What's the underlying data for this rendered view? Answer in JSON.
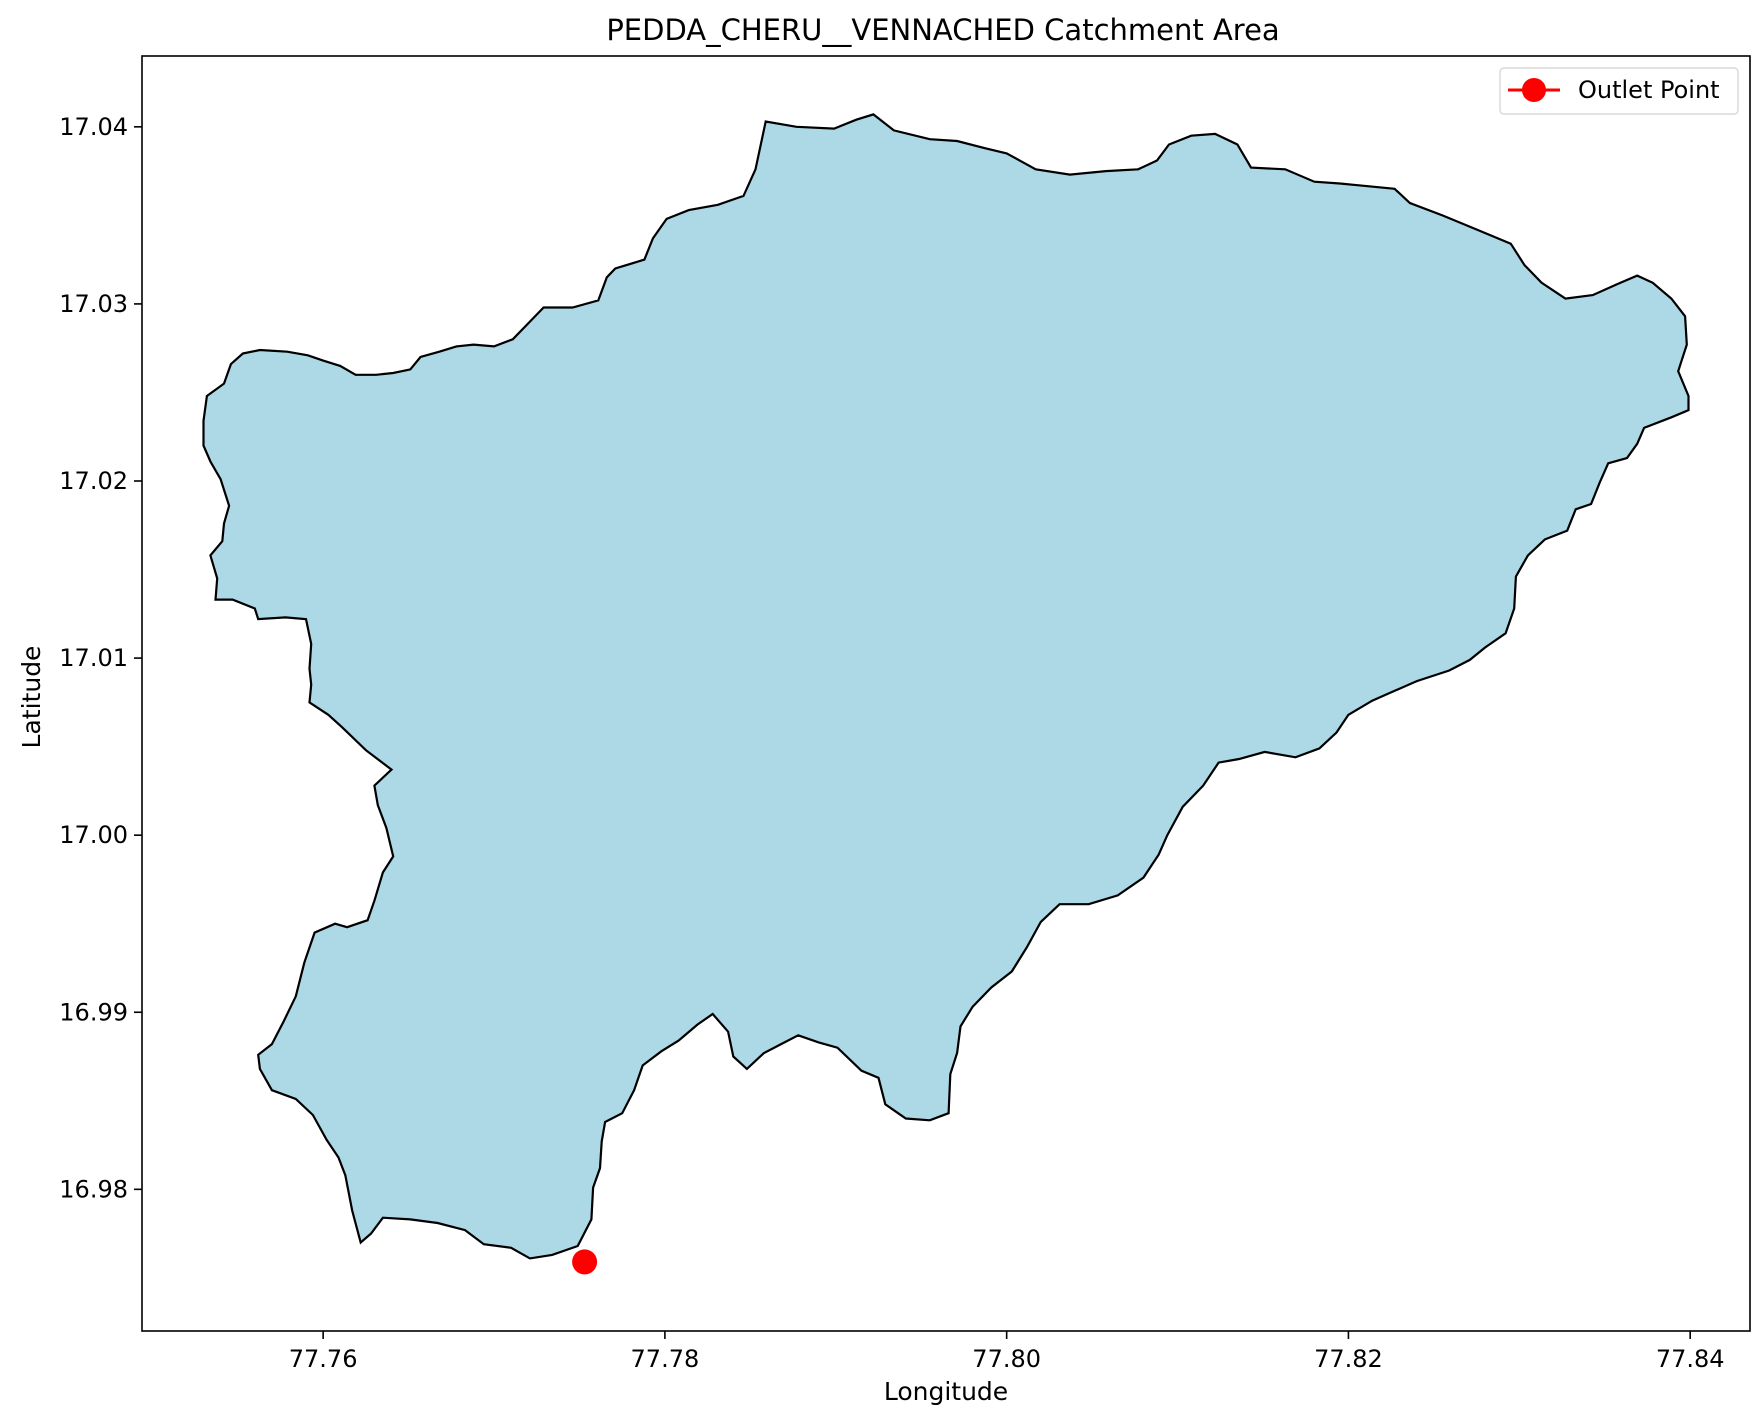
{
  "map": {
    "title": "PEDDA_CHERU__VENNACHED Catchment Area",
    "xlabel": "Longitude",
    "ylabel": "Latitude",
    "xlim": [
      77.7494,
      77.8435
    ],
    "ylim": [
      16.972,
      17.044
    ],
    "xticks": [
      77.76,
      77.78,
      77.8,
      77.82,
      77.84
    ],
    "xtick_labels": [
      "77.76",
      "77.78",
      "77.80",
      "77.82",
      "77.84"
    ],
    "yticks": [
      16.98,
      16.99,
      17.0,
      17.01,
      17.02,
      17.03,
      17.04
    ],
    "ytick_labels": [
      "16.98",
      "16.99",
      "17.00",
      "17.01",
      "17.02",
      "17.03",
      "17.04"
    ],
    "catchment": {
      "fill": "#add8e6",
      "stroke": "#000000",
      "boundary": [
        [
          77.7553,
          17.0272
        ],
        [
          77.7563,
          17.0274
        ],
        [
          77.7579,
          17.0273
        ],
        [
          77.7591,
          17.0271
        ],
        [
          77.76,
          17.0268
        ],
        [
          77.761,
          17.0265
        ],
        [
          77.7619,
          17.026
        ],
        [
          77.7631,
          17.026
        ],
        [
          77.7641,
          17.0261
        ],
        [
          77.7651,
          17.0263
        ],
        [
          77.7657,
          17.027
        ],
        [
          77.7668,
          17.0273
        ],
        [
          77.7678,
          17.0276
        ],
        [
          77.7688,
          17.0277
        ],
        [
          77.77,
          17.0276
        ],
        [
          77.7711,
          17.028
        ],
        [
          77.7722,
          17.0291
        ],
        [
          77.7729,
          17.0298
        ],
        [
          77.7746,
          17.0298
        ],
        [
          77.7761,
          17.0302
        ],
        [
          77.7766,
          17.0315
        ],
        [
          77.7771,
          17.032
        ],
        [
          77.7788,
          17.0325
        ],
        [
          77.7793,
          17.0337
        ],
        [
          77.7801,
          17.0348
        ],
        [
          77.7814,
          17.0353
        ],
        [
          77.7831,
          17.0356
        ],
        [
          77.7846,
          17.0361
        ],
        [
          77.7853,
          17.0376
        ],
        [
          77.7859,
          17.0403
        ],
        [
          77.7877,
          17.04
        ],
        [
          77.7899,
          17.0399
        ],
        [
          77.7912,
          17.0404
        ],
        [
          77.7922,
          17.0407
        ],
        [
          77.7934,
          17.0398
        ],
        [
          77.7955,
          17.0393
        ],
        [
          77.7971,
          17.0392
        ],
        [
          77.7987,
          17.0388
        ],
        [
          77.8,
          17.0385
        ],
        [
          77.8017,
          17.0376
        ],
        [
          77.8037,
          17.0373
        ],
        [
          77.8058,
          17.0375
        ],
        [
          77.8077,
          17.0376
        ],
        [
          77.8088,
          17.0381
        ],
        [
          77.8095,
          17.039
        ],
        [
          77.8108,
          17.0395
        ],
        [
          77.8122,
          17.0396
        ],
        [
          77.8135,
          17.039
        ],
        [
          77.8143,
          17.0377
        ],
        [
          77.8163,
          17.0376
        ],
        [
          77.818,
          17.0369
        ],
        [
          77.8195,
          17.0368
        ],
        [
          77.8206,
          17.0367
        ],
        [
          77.8227,
          17.0365
        ],
        [
          77.8236,
          17.0357
        ],
        [
          77.8255,
          17.035
        ],
        [
          77.8275,
          17.0342
        ],
        [
          77.8295,
          17.0334
        ],
        [
          77.8303,
          17.0322
        ],
        [
          77.8313,
          17.0312
        ],
        [
          77.8327,
          17.0303
        ],
        [
          77.8343,
          17.0305
        ],
        [
          77.8357,
          17.0311
        ],
        [
          77.8369,
          17.0316
        ],
        [
          77.8378,
          17.0312
        ],
        [
          77.8389,
          17.0303
        ],
        [
          77.8397,
          17.0293
        ],
        [
          77.8398,
          17.0277
        ],
        [
          77.8393,
          17.0262
        ],
        [
          77.8399,
          17.0248
        ],
        [
          77.8399,
          17.024
        ],
        [
          77.8389,
          17.0236
        ],
        [
          77.8373,
          17.023
        ],
        [
          77.8369,
          17.0221
        ],
        [
          77.8363,
          17.0213
        ],
        [
          77.8352,
          17.021
        ],
        [
          77.8347,
          17.0199
        ],
        [
          77.8342,
          17.0187
        ],
        [
          77.8333,
          17.0184
        ],
        [
          77.8328,
          17.0172
        ],
        [
          77.8315,
          17.0167
        ],
        [
          77.8305,
          17.0158
        ],
        [
          77.8298,
          17.0146
        ],
        [
          77.8297,
          17.0128
        ],
        [
          77.8292,
          17.0114
        ],
        [
          77.828,
          17.0106
        ],
        [
          77.8271,
          17.0099
        ],
        [
          77.8259,
          17.0093
        ],
        [
          77.824,
          17.0087
        ],
        [
          77.8214,
          17.0076
        ],
        [
          77.82,
          17.0068
        ],
        [
          77.8193,
          17.0058
        ],
        [
          77.8183,
          17.0049
        ],
        [
          77.8169,
          17.0044
        ],
        [
          77.8151,
          17.0047
        ],
        [
          77.8136,
          17.0043
        ],
        [
          77.8124,
          17.0041
        ],
        [
          77.8115,
          17.0028
        ],
        [
          77.8103,
          17.0016
        ],
        [
          77.8094,
          17.0
        ],
        [
          77.8089,
          16.9989
        ],
        [
          77.808,
          16.9976
        ],
        [
          77.8065,
          16.9966
        ],
        [
          77.8048,
          16.9961
        ],
        [
          77.8031,
          16.9961
        ],
        [
          77.802,
          16.9951
        ],
        [
          77.8012,
          16.9937
        ],
        [
          77.8003,
          16.9923
        ],
        [
          77.7991,
          16.9914
        ],
        [
          77.798,
          16.9903
        ],
        [
          77.7973,
          16.9892
        ],
        [
          77.7971,
          16.9877
        ],
        [
          77.7967,
          16.9865
        ],
        [
          77.7966,
          16.9843
        ],
        [
          77.7955,
          16.9839
        ],
        [
          77.7941,
          16.984
        ],
        [
          77.7929,
          16.9848
        ],
        [
          77.7925,
          16.9863
        ],
        [
          77.7915,
          16.9867
        ],
        [
          77.7901,
          16.988
        ],
        [
          77.789,
          16.9883
        ],
        [
          77.7878,
          16.9887
        ],
        [
          77.7868,
          16.9882
        ],
        [
          77.7858,
          16.9877
        ],
        [
          77.7848,
          16.9868
        ],
        [
          77.784,
          16.9875
        ],
        [
          77.7837,
          16.9889
        ],
        [
          77.7828,
          16.9899
        ],
        [
          77.7819,
          16.9893
        ],
        [
          77.7808,
          16.9884
        ],
        [
          77.7798,
          16.9878
        ],
        [
          77.7787,
          16.987
        ],
        [
          77.7782,
          16.9856
        ],
        [
          77.7775,
          16.9843
        ],
        [
          77.7765,
          16.9838
        ],
        [
          77.7763,
          16.9827
        ],
        [
          77.7762,
          16.9812
        ],
        [
          77.7758,
          16.9801
        ],
        [
          77.7757,
          16.9783
        ],
        [
          77.7749,
          16.9768
        ],
        [
          77.7734,
          16.9763
        ],
        [
          77.7721,
          16.9761
        ],
        [
          77.771,
          16.9767
        ],
        [
          77.7694,
          16.9769
        ],
        [
          77.7683,
          16.9777
        ],
        [
          77.7667,
          16.9781
        ],
        [
          77.7651,
          16.9783
        ],
        [
          77.7635,
          16.9784
        ],
        [
          77.7628,
          16.9775
        ],
        [
          77.7622,
          16.977
        ],
        [
          77.7617,
          16.9788
        ],
        [
          77.7613,
          16.9808
        ],
        [
          77.7609,
          16.9818
        ],
        [
          77.7602,
          16.9828
        ],
        [
          77.7594,
          16.9842
        ],
        [
          77.7584,
          16.9851
        ],
        [
          77.757,
          16.9856
        ],
        [
          77.7563,
          16.9868
        ],
        [
          77.7562,
          16.9876
        ],
        [
          77.757,
          16.9882
        ],
        [
          77.7577,
          16.9895
        ],
        [
          77.7584,
          16.9909
        ],
        [
          77.7589,
          16.9928
        ],
        [
          77.7595,
          16.9945
        ],
        [
          77.7607,
          16.995
        ],
        [
          77.7614,
          16.9948
        ],
        [
          77.7626,
          16.9952
        ],
        [
          77.763,
          16.9963
        ],
        [
          77.7635,
          16.9979
        ],
        [
          77.7641,
          16.9988
        ],
        [
          77.7637,
          17.0004
        ],
        [
          77.7632,
          17.0017
        ],
        [
          77.763,
          17.0028
        ],
        [
          77.764,
          17.0037
        ],
        [
          77.7625,
          17.0048
        ],
        [
          77.7611,
          17.0061
        ],
        [
          77.7603,
          17.0068
        ],
        [
          77.7592,
          17.0075
        ],
        [
          77.7593,
          17.0085
        ],
        [
          77.7592,
          17.0094
        ],
        [
          77.7593,
          17.0108
        ],
        [
          77.759,
          17.0122
        ],
        [
          77.7578,
          17.0123
        ],
        [
          77.7562,
          17.0122
        ],
        [
          77.756,
          17.0128
        ],
        [
          77.7547,
          17.0133
        ],
        [
          77.7537,
          17.0133
        ],
        [
          77.7538,
          17.0145
        ],
        [
          77.7534,
          17.0158
        ],
        [
          77.7541,
          17.0166
        ],
        [
          77.7542,
          17.0176
        ],
        [
          77.7545,
          17.0186
        ],
        [
          77.754,
          17.0201
        ],
        [
          77.7534,
          17.0211
        ],
        [
          77.753,
          17.022
        ],
        [
          77.753,
          17.0234
        ],
        [
          77.7532,
          17.0248
        ],
        [
          77.7542,
          17.0255
        ],
        [
          77.7546,
          17.0266
        ],
        [
          77.7553,
          17.0272
        ]
      ]
    },
    "outlet": {
      "lon": 77.7753,
      "lat": 16.9759,
      "color": "#ff0000",
      "label": "Outlet Point"
    },
    "legend": {
      "position": "upper right",
      "entries": [
        "Outlet Point"
      ]
    }
  }
}
